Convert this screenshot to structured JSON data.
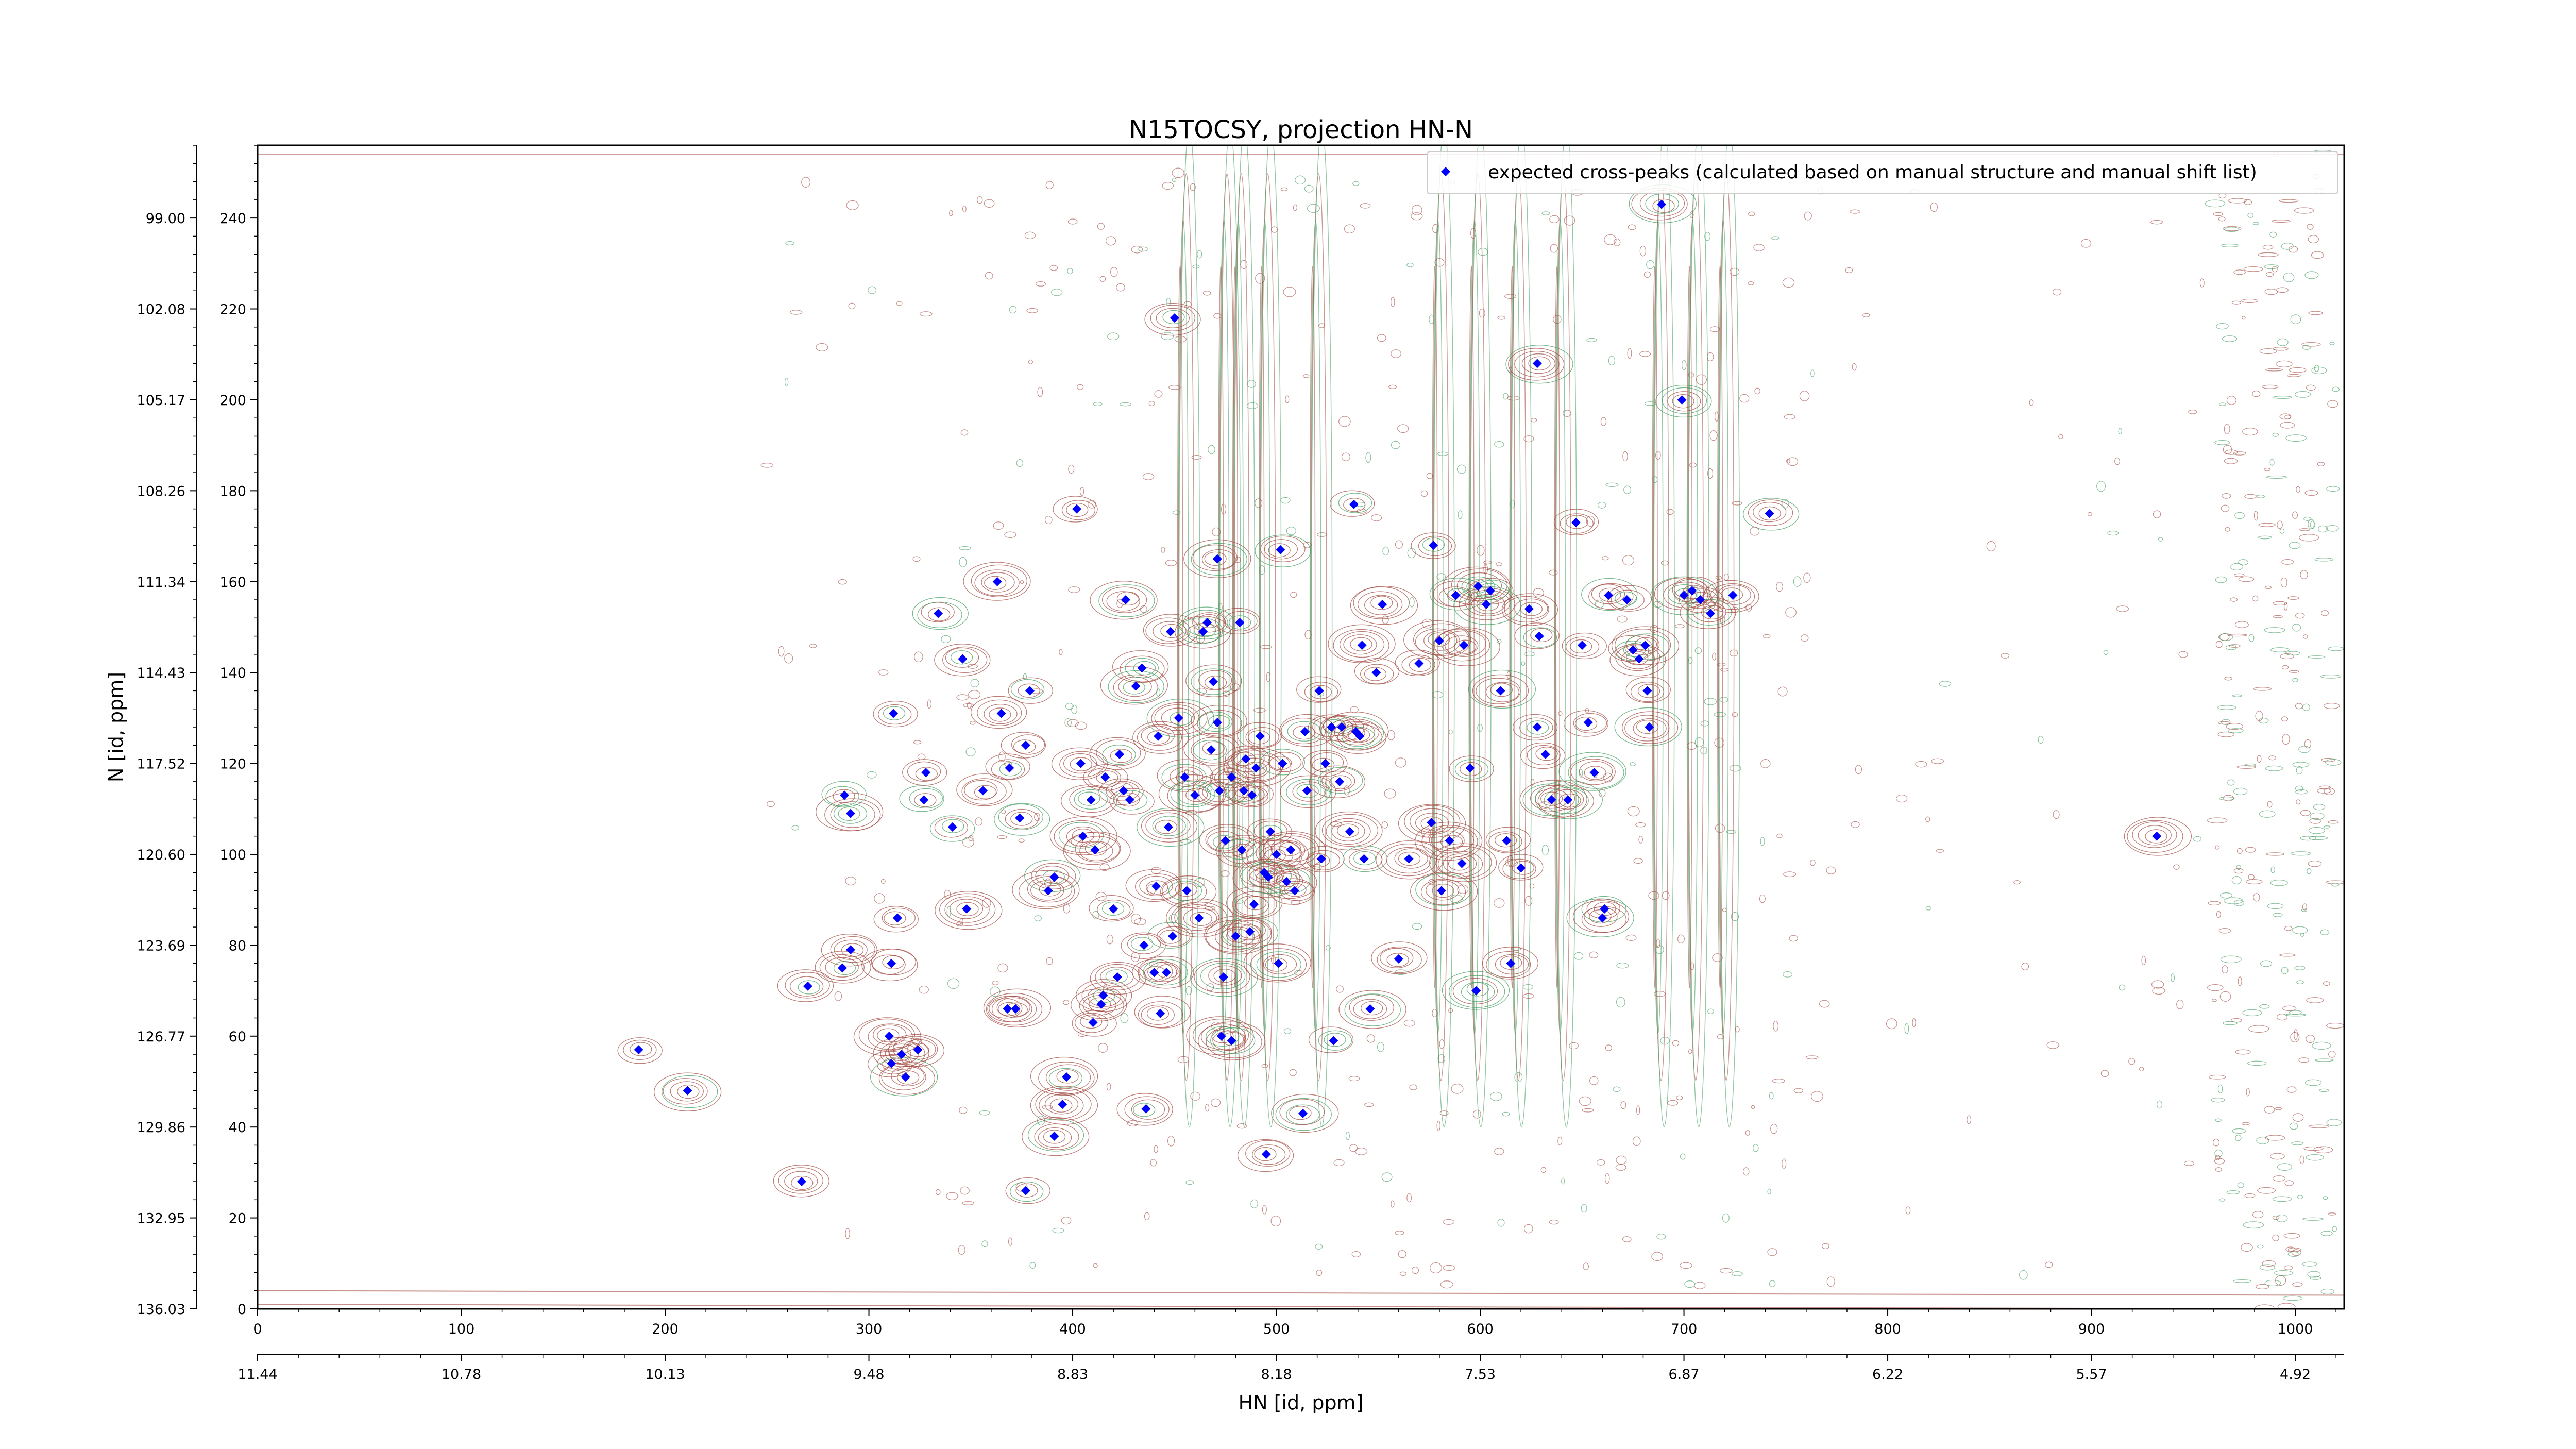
{
  "chart_data": {
    "type": "scatter",
    "title": "N15TOCSY, projection HN-N",
    "xlabel": "HN [id, ppm]",
    "ylabel": "N [id, ppm]",
    "xlim": [
      0,
      1024
    ],
    "ylim": [
      0,
      256
    ],
    "x_ticks": [
      "0",
      "100",
      "200",
      "300",
      "400",
      "500",
      "600",
      "700",
      "800",
      "900",
      "1000"
    ],
    "x_ppm_ticks": [
      {
        "pos": 0,
        "label": "11.44"
      },
      {
        "pos": 100,
        "label": "10.78"
      },
      {
        "pos": 200,
        "label": "10.13"
      },
      {
        "pos": 300,
        "label": "9.48"
      },
      {
        "pos": 400,
        "label": "8.83"
      },
      {
        "pos": 500,
        "label": "8.18"
      },
      {
        "pos": 600,
        "label": "7.53"
      },
      {
        "pos": 700,
        "label": "6.87"
      },
      {
        "pos": 800,
        "label": "6.22"
      },
      {
        "pos": 900,
        "label": "5.57"
      },
      {
        "pos": 1000,
        "label": "4.92"
      }
    ],
    "y_ticks": [
      "0",
      "20",
      "40",
      "60",
      "80",
      "100",
      "120",
      "140",
      "160",
      "180",
      "200",
      "220",
      "240"
    ],
    "y_ppm_ticks": [
      {
        "pos": 0,
        "label": "136.03"
      },
      {
        "pos": 20,
        "label": "132.95"
      },
      {
        "pos": 40,
        "label": "129.86"
      },
      {
        "pos": 60,
        "label": "126.77"
      },
      {
        "pos": 80,
        "label": "123.69"
      },
      {
        "pos": 100,
        "label": "120.60"
      },
      {
        "pos": 120,
        "label": "117.52"
      },
      {
        "pos": 140,
        "label": "114.43"
      },
      {
        "pos": 160,
        "label": "111.34"
      },
      {
        "pos": 180,
        "label": "108.26"
      },
      {
        "pos": 200,
        "label": "105.17"
      },
      {
        "pos": 220,
        "label": "102.08"
      },
      {
        "pos": 240,
        "label": "99.00"
      }
    ],
    "legend": {
      "position": "top-right"
    },
    "series": [
      {
        "name": "expected cross-peaks (calculated based on manual structure and manual shift list)",
        "color": "#0000ff",
        "points": [
          [
            187,
            57
          ],
          [
            211,
            48
          ],
          [
            267,
            28
          ],
          [
            270,
            71
          ],
          [
            287,
            75
          ],
          [
            291,
            79
          ],
          [
            288,
            113
          ],
          [
            291,
            109
          ],
          [
            314,
            86
          ],
          [
            311,
            76
          ],
          [
            310,
            60
          ],
          [
            311,
            54
          ],
          [
            316,
            56
          ],
          [
            318,
            51
          ],
          [
            324,
            57
          ],
          [
            312,
            131
          ],
          [
            327,
            112
          ],
          [
            328,
            118
          ],
          [
            334,
            153
          ],
          [
            341,
            106
          ],
          [
            346,
            143
          ],
          [
            348,
            88
          ],
          [
            356,
            114
          ],
          [
            363,
            160
          ],
          [
            365,
            131
          ],
          [
            369,
            119
          ],
          [
            368,
            66
          ],
          [
            372,
            66
          ],
          [
            377,
            26
          ],
          [
            374,
            108
          ],
          [
            377,
            124
          ],
          [
            379,
            136
          ],
          [
            391,
            38
          ],
          [
            391,
            95
          ],
          [
            388,
            92
          ],
          [
            395,
            45
          ],
          [
            397,
            51
          ],
          [
            402,
            176
          ],
          [
            404,
            120
          ],
          [
            405,
            104
          ],
          [
            409,
            112
          ],
          [
            410,
            63
          ],
          [
            411,
            101
          ],
          [
            414,
            67
          ],
          [
            415,
            69
          ],
          [
            416,
            117
          ],
          [
            420,
            88
          ],
          [
            422,
            73
          ],
          [
            423,
            122
          ],
          [
            425,
            114
          ],
          [
            426,
            156
          ],
          [
            428,
            112
          ],
          [
            431,
            137
          ],
          [
            434,
            141
          ],
          [
            436,
            44
          ],
          [
            435,
            80
          ],
          [
            440,
            74
          ],
          [
            442,
            126
          ],
          [
            441,
            93
          ],
          [
            443,
            65
          ],
          [
            446,
            74
          ],
          [
            447,
            106
          ],
          [
            448,
            149
          ],
          [
            449,
            82
          ],
          [
            450,
            218
          ],
          [
            452,
            130
          ],
          [
            455,
            117
          ],
          [
            456,
            92
          ],
          [
            460,
            113
          ],
          [
            462,
            86
          ],
          [
            464,
            149
          ],
          [
            466,
            151
          ],
          [
            468,
            123
          ],
          [
            469,
            138
          ],
          [
            471,
            129
          ],
          [
            471,
            165
          ],
          [
            472,
            114
          ],
          [
            473,
            60
          ],
          [
            474,
            73
          ],
          [
            475,
            103
          ],
          [
            478,
            117
          ],
          [
            478,
            59
          ],
          [
            480,
            82
          ],
          [
            482,
            151
          ],
          [
            483,
            101
          ],
          [
            484,
            114
          ],
          [
            485,
            121
          ],
          [
            487,
            83
          ],
          [
            488,
            113
          ],
          [
            489,
            89
          ],
          [
            490,
            119
          ],
          [
            492,
            126
          ],
          [
            494,
            96
          ],
          [
            495,
            34
          ],
          [
            496,
            95
          ],
          [
            497,
            105
          ],
          [
            500,
            100
          ],
          [
            501,
            76
          ],
          [
            502,
            167
          ],
          [
            503,
            120
          ],
          [
            505,
            94
          ],
          [
            507,
            101
          ],
          [
            509,
            92
          ],
          [
            513,
            43
          ],
          [
            514,
            127
          ],
          [
            515,
            114
          ],
          [
            521,
            136
          ],
          [
            522,
            99
          ],
          [
            524,
            120
          ],
          [
            527,
            128
          ],
          [
            528,
            59
          ],
          [
            531,
            116
          ],
          [
            532,
            128
          ],
          [
            536,
            105
          ],
          [
            538,
            177
          ],
          [
            539,
            127
          ],
          [
            541,
            126
          ],
          [
            542,
            146
          ],
          [
            543,
            99
          ],
          [
            546,
            66
          ],
          [
            549,
            140
          ],
          [
            552,
            155
          ],
          [
            560,
            77
          ],
          [
            565,
            99
          ],
          [
            570,
            142
          ],
          [
            576,
            107
          ],
          [
            577,
            168
          ],
          [
            580,
            147
          ],
          [
            581,
            92
          ],
          [
            585,
            103
          ],
          [
            588,
            157
          ],
          [
            591,
            98
          ],
          [
            592,
            146
          ],
          [
            595,
            119
          ],
          [
            598,
            70
          ],
          [
            599,
            159
          ],
          [
            603,
            155
          ],
          [
            605,
            158
          ],
          [
            610,
            136
          ],
          [
            613,
            103
          ],
          [
            615,
            76
          ],
          [
            620,
            97
          ],
          [
            624,
            154
          ],
          [
            628,
            128
          ],
          [
            628,
            208
          ],
          [
            629,
            148
          ],
          [
            632,
            122
          ],
          [
            635,
            112
          ],
          [
            643,
            112
          ],
          [
            647,
            173
          ],
          [
            650,
            146
          ],
          [
            653,
            129
          ],
          [
            656,
            118
          ],
          [
            660,
            86
          ],
          [
            661,
            88
          ],
          [
            663,
            157
          ],
          [
            672,
            156
          ],
          [
            675,
            145
          ],
          [
            678,
            143
          ],
          [
            681,
            146
          ],
          [
            682,
            136
          ],
          [
            683,
            128
          ],
          [
            689,
            243
          ],
          [
            699,
            200
          ],
          [
            700,
            157
          ],
          [
            704,
            158
          ],
          [
            708,
            156
          ],
          [
            713,
            153
          ],
          [
            724,
            157
          ],
          [
            742,
            175
          ],
          [
            932,
            104
          ]
        ]
      }
    ]
  }
}
